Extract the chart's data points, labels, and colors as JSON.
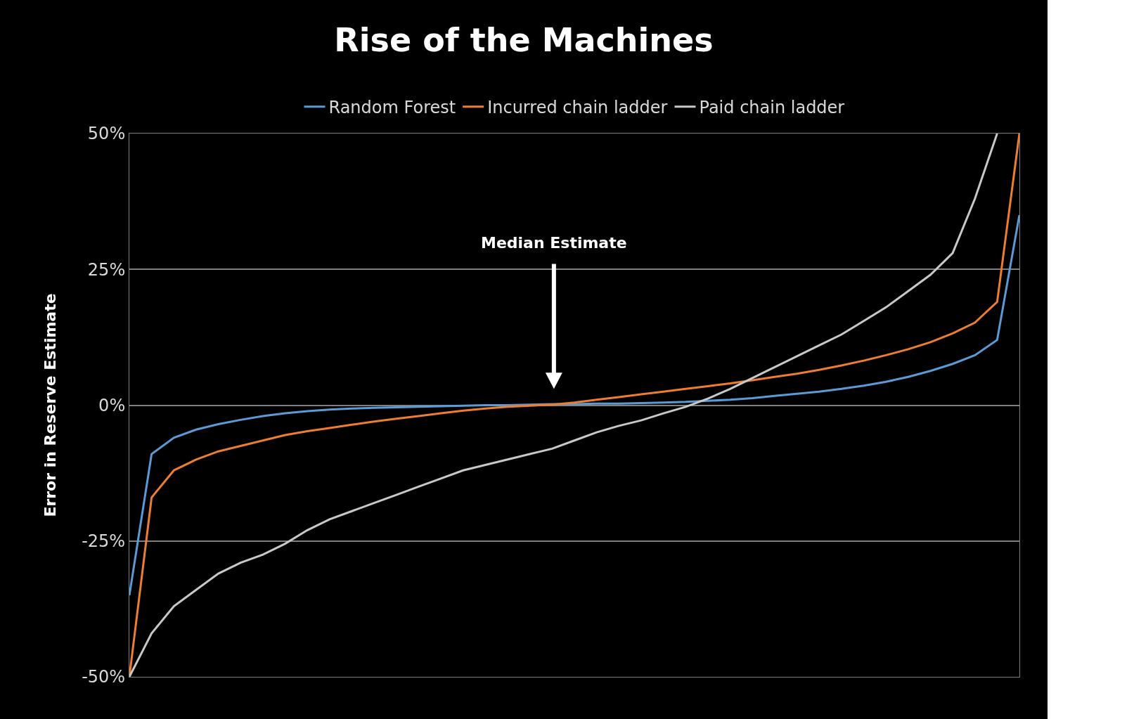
{
  "chart_data": {
    "type": "line",
    "title": "Rise of the Machines",
    "ylabel": "Error in Reserve Estimate",
    "categories": [
      null,
      null,
      null,
      null,
      null,
      null,
      null,
      null,
      null,
      null,
      null,
      null,
      null,
      null,
      null,
      null,
      null,
      null,
      null,
      null,
      null,
      null,
      null,
      null,
      null,
      null,
      null,
      null,
      null,
      null,
      null,
      null,
      null,
      null,
      null,
      null,
      null,
      null,
      null,
      null,
      null
    ],
    "series": [
      {
        "name": "Random Forest",
        "color": "#5b9bd5",
        "values": [
          -35,
          -9,
          -6,
          -4.5,
          -3.5,
          -2.7,
          -2,
          -1.5,
          -1.1,
          -0.8,
          -0.6,
          -0.5,
          -0.4,
          -0.3,
          -0.2,
          -0.1,
          0,
          0,
          0.1,
          0.2,
          0.2,
          0.3,
          0.3,
          0.4,
          0.5,
          0.6,
          0.8,
          1,
          1.3,
          1.7,
          2.1,
          2.5,
          3,
          3.6,
          4.3,
          5.2,
          6.3,
          7.6,
          9.2,
          12,
          35
        ]
      },
      {
        "name": "Incurred chain ladder",
        "color": "#ed7d31",
        "values": [
          -50,
          -17,
          -12,
          -10,
          -8.5,
          -7.5,
          -6.5,
          -5.5,
          -4.8,
          -4.2,
          -3.6,
          -3,
          -2.5,
          -2,
          -1.5,
          -1,
          -0.6,
          -0.3,
          -0.1,
          0.1,
          0.5,
          1,
          1.5,
          2,
          2.5,
          3,
          3.5,
          4,
          4.6,
          5.2,
          5.8,
          6.5,
          7.3,
          8.2,
          9.2,
          10.3,
          11.6,
          13.2,
          15.2,
          19,
          50
        ]
      },
      {
        "name": "Paid chain ladder",
        "color": "#c8c8c8",
        "values": [
          -50,
          -42,
          -37,
          -34,
          -31,
          -29,
          -27.5,
          -25.5,
          -23,
          -21,
          -19.5,
          -18,
          -16.5,
          -15,
          -13.5,
          -12,
          -11,
          -10,
          -9,
          -8,
          -6.5,
          -5,
          -3.8,
          -2.8,
          -1.5,
          -0.3,
          1.2,
          3,
          5,
          7,
          9,
          11,
          13,
          15.5,
          18,
          21,
          24,
          28,
          38,
          50,
          null
        ]
      }
    ],
    "ylim": [
      -50,
      50
    ],
    "yticks": [
      {
        "value": -50,
        "label": "-50%"
      },
      {
        "value": -25,
        "label": "-25%"
      },
      {
        "value": 0,
        "label": "0%"
      },
      {
        "value": 25,
        "label": "25%"
      },
      {
        "value": 50,
        "label": "50%"
      }
    ],
    "grid": "y",
    "legend": "top",
    "marker": "none",
    "line_style": "solid",
    "annotations": [
      "Median Estimate"
    ]
  }
}
